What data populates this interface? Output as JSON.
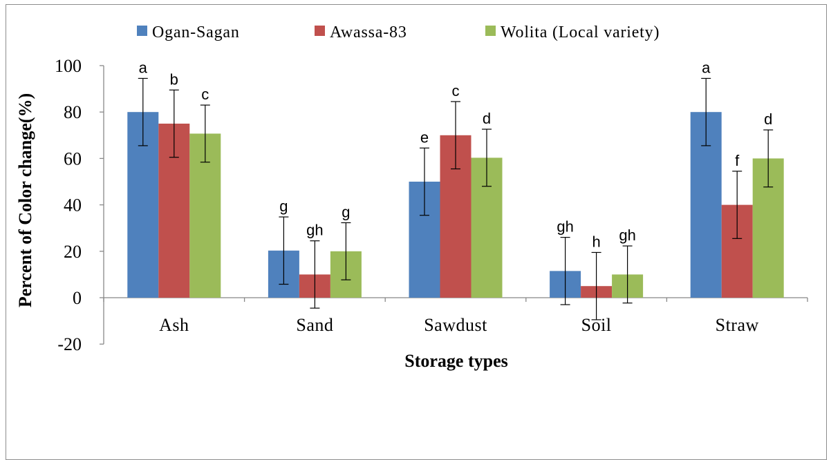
{
  "chart_data": {
    "type": "bar",
    "title": "",
    "xlabel": "Storage types",
    "ylabel": "Percent of Color change(%)",
    "ylim": [
      -20,
      100
    ],
    "yticks": [
      -20,
      0,
      20,
      40,
      60,
      80,
      100
    ],
    "grid": false,
    "legend_position": "top",
    "categories": [
      "Ash",
      "Sand",
      "Sawdust",
      "Soil",
      "Straw"
    ],
    "series": [
      {
        "name": "Ogan-Sagan",
        "color": "#4f81bd",
        "values": [
          80,
          20.3,
          50,
          11.5,
          80
        ],
        "error": [
          14.5,
          14.5,
          14.5,
          14.5,
          14.5
        ],
        "letters": [
          "a",
          "g",
          "e",
          "gh",
          "a"
        ]
      },
      {
        "name": "Awassa-83",
        "color": "#c0504d",
        "values": [
          75,
          10,
          70,
          5,
          40
        ],
        "error": [
          14.5,
          14.5,
          14.5,
          14.5,
          14.5
        ],
        "letters": [
          "b",
          "gh",
          "c",
          "h",
          "f"
        ]
      },
      {
        "name": "Wolita (Local variety)",
        "color": "#9bbb59",
        "values": [
          70.7,
          20,
          60.3,
          10,
          60
        ],
        "error": [
          12.3,
          12.3,
          12.3,
          12.3,
          12.3
        ],
        "letters": [
          "c",
          "g",
          "d",
          "gh",
          "d"
        ]
      }
    ]
  }
}
